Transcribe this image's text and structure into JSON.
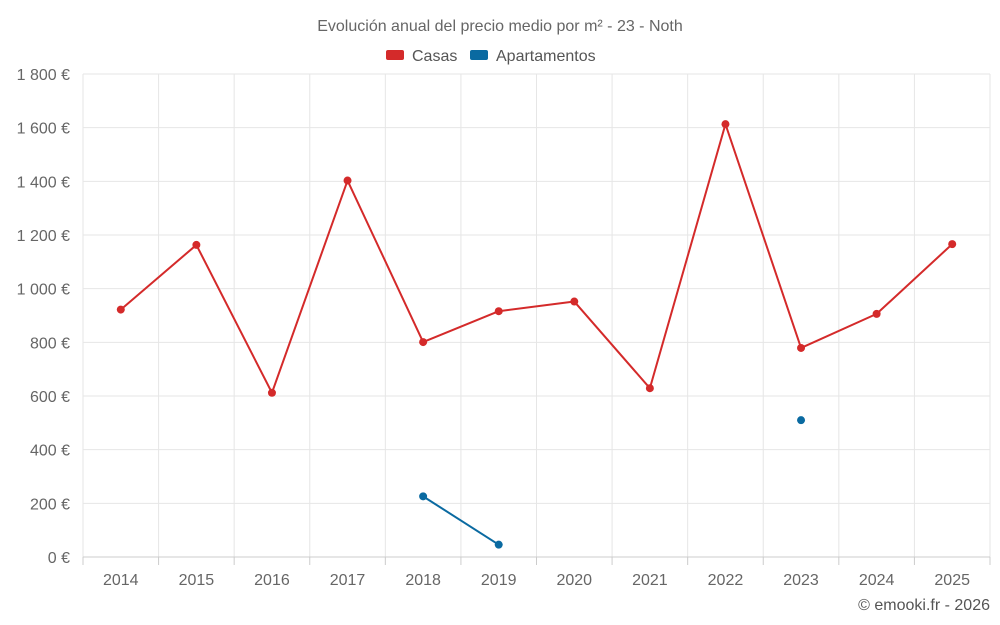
{
  "chart_data": {
    "type": "line",
    "title": "Evolución anual del precio medio por m² - 23 - Noth",
    "categories": [
      "2014",
      "2015",
      "2016",
      "2017",
      "2018",
      "2019",
      "2020",
      "2021",
      "2022",
      "2023",
      "2024",
      "2025"
    ],
    "ylim": [
      0,
      1800
    ],
    "yticks": [
      0,
      200,
      400,
      600,
      800,
      1000,
      1200,
      1400,
      1600,
      1800
    ],
    "ytick_labels": [
      "0 €",
      "200 €",
      "400 €",
      "600 €",
      "800 €",
      "1 000 €",
      "1 200 €",
      "1 400 €",
      "1 600 €",
      "1 800 €"
    ],
    "grid": true,
    "legend_position": "top-center",
    "series": [
      {
        "name": "Casas",
        "color": "#d42a2a",
        "values": [
          922,
          1163,
          612,
          1403,
          801,
          916,
          952,
          629,
          1613,
          779,
          906,
          1166
        ]
      },
      {
        "name": "Apartamentos",
        "color": "#0a6aa1",
        "values": [
          null,
          null,
          null,
          null,
          226,
          46,
          null,
          null,
          null,
          510,
          null,
          null
        ]
      }
    ]
  },
  "credit": "© emooki.fr - 2026"
}
